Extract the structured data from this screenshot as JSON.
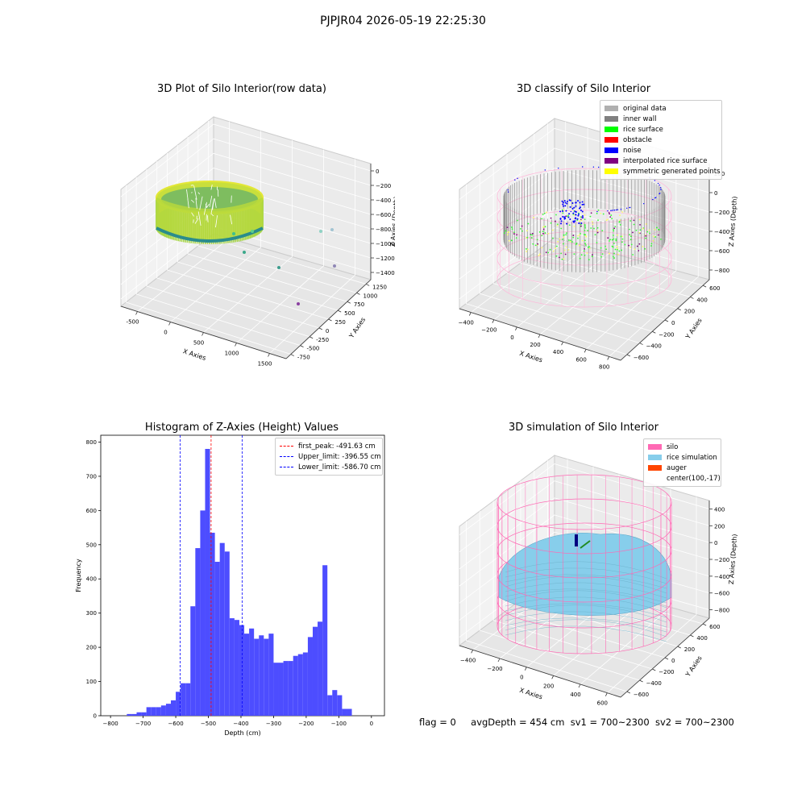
{
  "figure": {
    "title": "PJPJR04 2026-05-19 22:25:30",
    "status": {
      "flag": "flag = 0",
      "avg_depth": "avgDepth = 454 cm",
      "sv1": "sv1 = 700~2300",
      "sv2": "sv2 = 700~2300"
    }
  },
  "chart_data": [
    {
      "type": "scatter",
      "title": "3D Plot of Silo Interior(row data)",
      "xlabel": "X Axies",
      "ylabel": "Y Axies",
      "zlabel": "Z Axies (Depth)",
      "x_ticks": [
        "-500",
        "0",
        "500",
        "1000",
        "1500"
      ],
      "y_ticks": [
        "-750",
        "-500",
        "-250",
        "0",
        "250",
        "500",
        "750",
        "1000",
        "1250"
      ],
      "z_ticks": [
        "0",
        "−200",
        "−400",
        "−600",
        "−800",
        "−1000",
        "−1200",
        "−1400"
      ],
      "colormap": "viridis"
    },
    {
      "type": "scatter",
      "title": "3D classify of Silo Interior",
      "xlabel": "X Axies",
      "ylabel": "Y Axies",
      "zlabel": "Z Axies (Depth)",
      "x_ticks": [
        "−400",
        "−200",
        "0",
        "200",
        "400",
        "600",
        "800"
      ],
      "y_ticks": [
        "−600",
        "−400",
        "−200",
        "0",
        "200",
        "400",
        "600"
      ],
      "z_ticks": [
        "200",
        "0",
        "−200",
        "−400",
        "−600",
        "−800"
      ],
      "legend": [
        {
          "label": "original data",
          "color": "#b0b0b0"
        },
        {
          "label": "inner wall",
          "color": "#808080"
        },
        {
          "label": "rice surface",
          "color": "#00ff00"
        },
        {
          "label": "obstacle",
          "color": "#ff0000"
        },
        {
          "label": "noise",
          "color": "#0000ff"
        },
        {
          "label": "interpolated rice surface",
          "color": "#800080"
        },
        {
          "label": "symmetric generated points",
          "color": "#ffff00"
        }
      ]
    },
    {
      "type": "bar",
      "title": "Histogram of Z-Axies (Height) Values",
      "xlabel": "Depth (cm)",
      "ylabel": "Frequency",
      "bin_width": 15,
      "bin_starts": [
        -750,
        -735,
        -720,
        -705,
        -690,
        -675,
        -660,
        -645,
        -630,
        -615,
        -600,
        -585,
        -570,
        -555,
        -540,
        -525,
        -510,
        -495,
        -480,
        -465,
        -450,
        -435,
        -420,
        -405,
        -390,
        -375,
        -360,
        -345,
        -330,
        -315,
        -300,
        -285,
        -270,
        -255,
        -240,
        -225,
        -210,
        -195,
        -180,
        -165,
        -150,
        -135,
        -120,
        -105,
        -90,
        -75,
        -60,
        -45,
        -30
      ],
      "values": [
        5,
        5,
        10,
        10,
        25,
        25,
        25,
        30,
        35,
        45,
        70,
        95,
        95,
        320,
        490,
        600,
        780,
        535,
        450,
        505,
        480,
        285,
        280,
        265,
        240,
        255,
        225,
        235,
        225,
        240,
        155,
        155,
        160,
        160,
        175,
        180,
        185,
        230,
        260,
        275,
        440,
        60,
        75,
        60,
        20,
        20,
        0,
        0,
        0
      ],
      "xlim": [
        -830,
        40
      ],
      "ylim": [
        0,
        820
      ],
      "x_ticks": [
        -800,
        -700,
        -600,
        -500,
        -400,
        -300,
        -200,
        -100,
        0
      ],
      "y_ticks": [
        0,
        100,
        200,
        300,
        400,
        500,
        600,
        700,
        800
      ],
      "color": "#4d4dff",
      "lines": [
        {
          "label": "first_peak: -491.63 cm",
          "value": -491.63,
          "color": "#ff0000"
        },
        {
          "label": "Upper_limit: -396.55 cm",
          "value": -396.55,
          "color": "#0000ff"
        },
        {
          "label": "Lower_limit: -586.70 cm",
          "value": -586.7,
          "color": "#0000ff"
        }
      ]
    },
    {
      "type": "scatter",
      "title": "3D simulation of Silo Interior",
      "xlabel": "X Axies",
      "ylabel": "Y Axies",
      "zlabel": "Z Axies (Depth)",
      "x_ticks": [
        "−400",
        "−200",
        "0",
        "200",
        "400",
        "600"
      ],
      "y_ticks": [
        "−600",
        "−400",
        "−200",
        "0",
        "200",
        "400",
        "600"
      ],
      "z_ticks": [
        "400",
        "200",
        "0",
        "−200",
        "−400",
        "−600",
        "−800"
      ],
      "legend": [
        {
          "label": "silo",
          "color": "#ff69b4"
        },
        {
          "label": "rice simulation",
          "color": "#87ceeb"
        },
        {
          "label": "auger",
          "color": "#ff4500"
        },
        {
          "label": "center(100,-17)",
          "color": ""
        }
      ]
    }
  ]
}
